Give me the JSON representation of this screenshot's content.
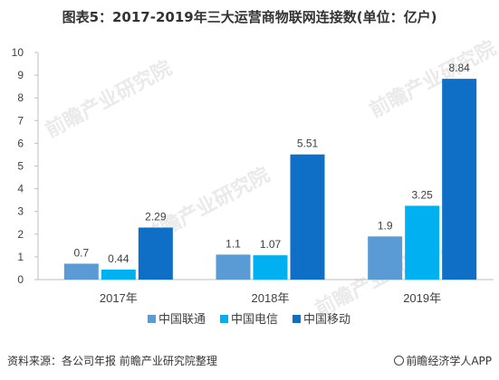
{
  "title": "图表5：2017-2019年三大运营商物联网连接数(单位：亿户)",
  "watermark": "前瞻产业研究院",
  "footer": {
    "source": "资料来源：各公司年报 前瞻产业研究院整理",
    "brand": "前瞻经济学人APP"
  },
  "colors": {
    "unicom": "#5B9BD5",
    "telecom": "#00B0F0",
    "mobile": "#0F6FC6",
    "axis": "#BFBFBF",
    "text": "#404040"
  },
  "chart_data": {
    "type": "bar",
    "categories": [
      "2017年",
      "2018年",
      "2019年"
    ],
    "series": [
      {
        "name": "中国联通",
        "values": [
          0.7,
          1.1,
          1.9
        ],
        "labels": [
          "0.7",
          "1.1",
          "1.9"
        ]
      },
      {
        "name": "中国电信",
        "values": [
          0.44,
          1.07,
          3.25
        ],
        "labels": [
          "0.44",
          "1.07",
          "3.25"
        ]
      },
      {
        "name": "中国移动",
        "values": [
          2.29,
          5.51,
          8.84
        ],
        "labels": [
          "2.29",
          "5.51",
          "8.84"
        ]
      }
    ],
    "ylim": [
      0,
      10
    ],
    "yticks": [
      "0",
      "1",
      "2",
      "3",
      "4",
      "5",
      "6",
      "7",
      "8",
      "9",
      "10"
    ],
    "grid": false,
    "legend": "bottom"
  }
}
